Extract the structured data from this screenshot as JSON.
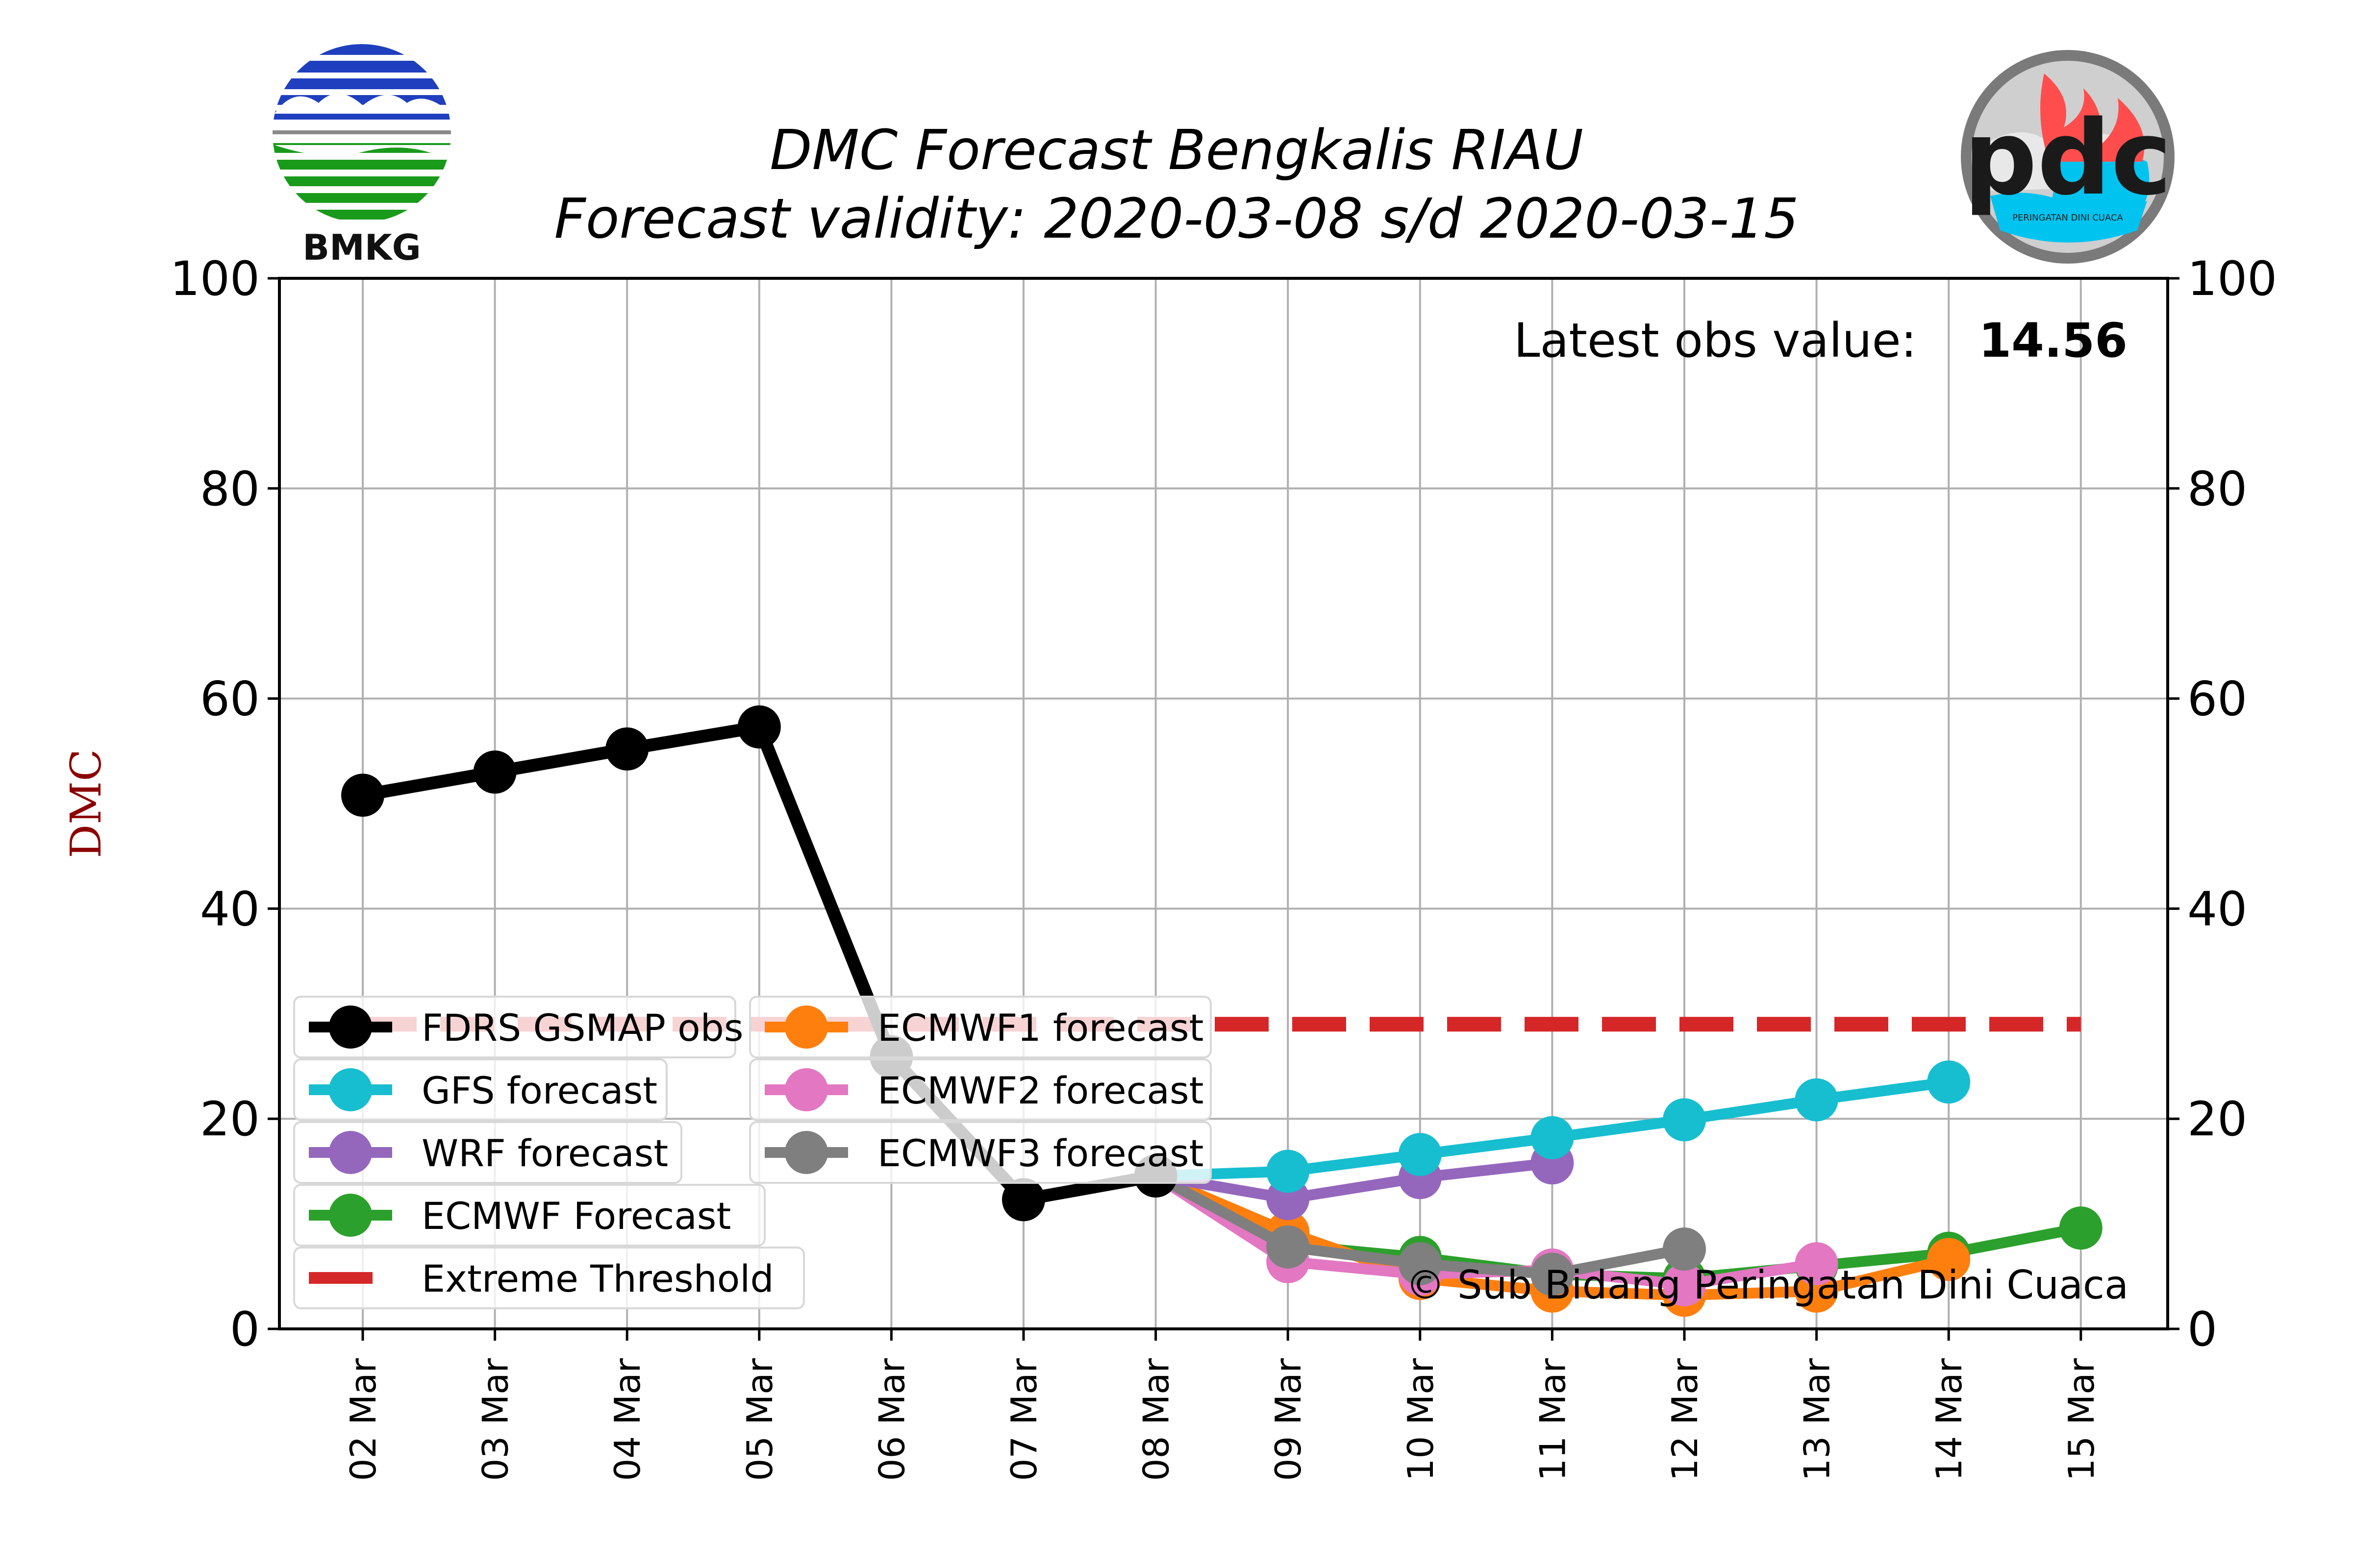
{
  "header": {
    "title": "DMC Forecast Bengkalis RIAU",
    "subtitle": "Forecast validity: 2020-03-08 s/d 2020-03-15"
  },
  "logos": {
    "left_text": "BMKG",
    "right_text": "pdc",
    "right_subtext": "PERINGATAN DINI CUACA"
  },
  "annotations": {
    "latest_label": "Latest obs value:",
    "latest_value": "14.56",
    "copyright": "© Sub Bidang Peringatan Dini Cuaca"
  },
  "chart_data": {
    "type": "line",
    "ylabel": "DMC",
    "xlabel": "",
    "ylim": [
      0,
      100
    ],
    "yticks": [
      0,
      20,
      40,
      60,
      80,
      100
    ],
    "grid": true,
    "legend_position": "lower-left",
    "categories": [
      "02 Mar",
      "03 Mar",
      "04 Mar",
      "05 Mar",
      "06 Mar",
      "07 Mar",
      "08 Mar",
      "09 Mar",
      "10 Mar",
      "11 Mar",
      "12 Mar",
      "13 Mar",
      "14 Mar",
      "15 Mar"
    ],
    "threshold": {
      "name": "Extreme Threshold",
      "value": 29,
      "color": "#d62728"
    },
    "series": [
      {
        "name": "ECMWF Forecast",
        "color": "#2ca02c",
        "values": [
          null,
          null,
          null,
          null,
          null,
          null,
          14.56,
          8,
          6.8,
          5.2,
          4.8,
          6,
          7.2,
          9.6
        ]
      },
      {
        "name": "ECMWF1 forecast",
        "color": "#ff7f0e",
        "values": [
          null,
          null,
          null,
          null,
          null,
          null,
          14.56,
          9.2,
          4.8,
          3.6,
          3.2,
          3.6,
          6.6,
          null
        ]
      },
      {
        "name": "ECMWF2 forecast",
        "color": "#e377c2",
        "values": [
          null,
          null,
          null,
          null,
          null,
          null,
          14.56,
          6.4,
          5.2,
          5.6,
          4.2,
          6.2,
          null,
          null
        ]
      },
      {
        "name": "ECMWF3 forecast",
        "color": "#7f7f7f",
        "values": [
          null,
          null,
          null,
          null,
          null,
          null,
          14.56,
          7.8,
          6.2,
          5.2,
          7.6,
          null,
          null,
          null
        ]
      },
      {
        "name": "WRF forecast",
        "color": "#9467bd",
        "values": [
          null,
          null,
          null,
          null,
          null,
          null,
          14.56,
          12.4,
          14.4,
          15.8,
          null,
          null,
          null,
          null
        ]
      },
      {
        "name": "GFS forecast",
        "color": "#17becf",
        "values": [
          null,
          null,
          null,
          null,
          null,
          null,
          14.56,
          15,
          16.6,
          18.2,
          19.9,
          21.8,
          23.5,
          null
        ]
      },
      {
        "name": "FDRS GSMAP obs",
        "color": "#000000",
        "values": [
          50.8,
          53,
          55.2,
          57.3,
          25.9,
          12.3,
          14.56,
          null,
          null,
          null,
          null,
          null,
          null,
          null
        ]
      }
    ],
    "legend_order": [
      "FDRS GSMAP obs",
      "GFS forecast",
      "WRF forecast",
      "ECMWF Forecast",
      "Extreme Threshold",
      "ECMWF1 forecast",
      "ECMWF2 forecast",
      "ECMWF3 forecast"
    ]
  }
}
